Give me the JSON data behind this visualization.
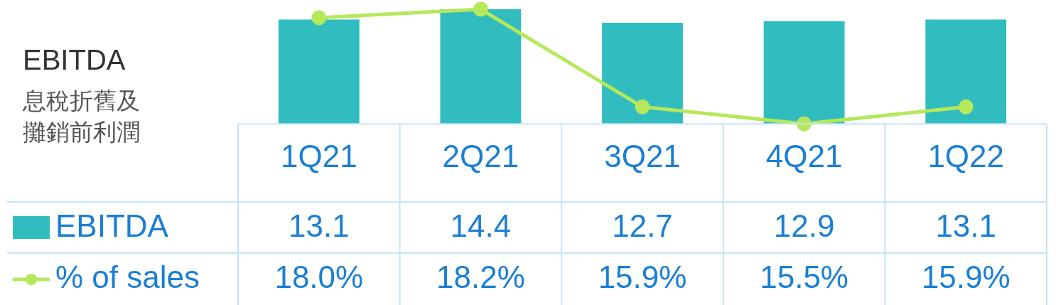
{
  "chart_data": {
    "type": "bar",
    "title": "EBITDA",
    "subtitle": "息稅折舊及攤銷前利潤",
    "categories": [
      "1Q21",
      "2Q21",
      "3Q21",
      "4Q21",
      "1Q22"
    ],
    "series": [
      {
        "name": "EBITDA",
        "color": "#31bcbf",
        "values": [
          13.1,
          14.4,
          12.7,
          12.9,
          13.1
        ],
        "value_labels": [
          "13.1",
          "14.4",
          "12.7",
          "12.9",
          "13.1"
        ]
      },
      {
        "name": "% of sales",
        "type": "line",
        "axis": "y2",
        "color": "#b5e85a",
        "values": [
          18.0,
          18.2,
          15.9,
          15.5,
          15.9
        ],
        "value_labels": [
          "18.0%",
          "18.2%",
          "15.9%",
          "15.5%",
          "15.9%"
        ]
      }
    ],
    "tick_labels": "x",
    "legend": "bottom left",
    "marker": "circle"
  }
}
